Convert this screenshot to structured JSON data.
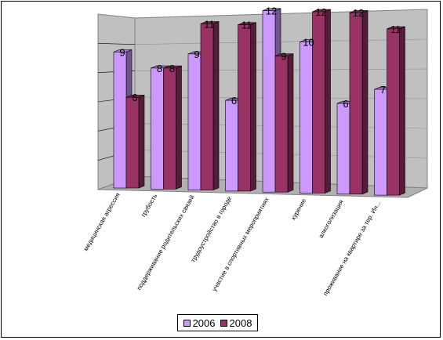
{
  "chart_data": {
    "type": "bar",
    "categories": [
      "медицинская агрессия",
      "грубость",
      "поддерживание родительских связей",
      "трудоустройство в городе",
      "участие в спортивных мероприятиях",
      "курение",
      "алкоголизация",
      "проживание на квартире за тер. Ин..."
    ],
    "series": [
      {
        "name": "2006",
        "values": [
          9,
          8,
          9,
          6,
          12,
          10,
          6,
          7
        ],
        "color": "#cc99ff"
      },
      {
        "name": "2008",
        "values": [
          6,
          8,
          11,
          11,
          9,
          12,
          12,
          11
        ],
        "color": "#993366"
      }
    ],
    "ylim": [
      0,
      12
    ],
    "grid": true,
    "legend_position": "bottom"
  }
}
